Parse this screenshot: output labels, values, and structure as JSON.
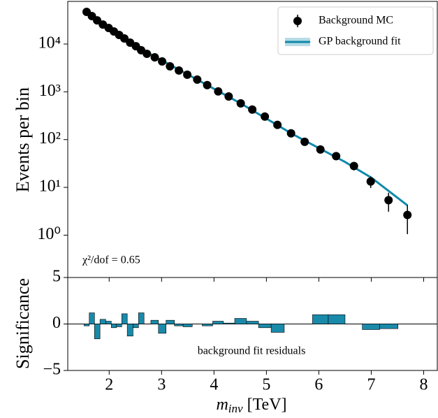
{
  "chart_data": [
    {
      "type": "scatter",
      "y_label": "Events per bin",
      "annotation": "χ²/dof = 0.65",
      "log_y": true,
      "legend": "upper right",
      "xlim": [
        1.21,
        8.26
      ],
      "xticks": [
        2,
        3,
        4,
        5,
        6,
        7,
        8
      ],
      "ylim": [
        0.13,
        78000
      ],
      "yticks": [
        {
          "value": 1,
          "label": "10⁰"
        },
        {
          "value": 10,
          "label": "10¹"
        },
        {
          "value": 100,
          "label": "10²"
        },
        {
          "value": 1000,
          "label": "10³"
        },
        {
          "value": 10000,
          "label": "10⁴"
        }
      ],
      "series": [
        {
          "name": "Background MC",
          "kind": "points",
          "color": "#000000",
          "x": [
            1.57,
            1.67,
            1.77,
            1.88,
            1.99,
            2.09,
            2.19,
            2.29,
            2.4,
            2.51,
            2.61,
            2.72,
            2.87,
            3.01,
            3.16,
            3.33,
            3.49,
            3.68,
            3.87,
            4.08,
            4.28,
            4.51,
            4.73,
            4.97,
            5.21,
            5.47,
            5.73,
            6.03,
            6.33,
            6.67,
            6.99,
            7.33,
            7.69
          ],
          "values": [
            47000,
            38400,
            31300,
            25600,
            21700,
            18300,
            15500,
            13100,
            10700,
            9000,
            7400,
            6250,
            5280,
            4320,
            3410,
            2790,
            2280,
            1800,
            1380,
            1020,
            800,
            574,
            425,
            303,
            203,
            135,
            90,
            62,
            45,
            28,
            13.3,
            5.4,
            2.65
          ],
          "errors": [
            217,
            196,
            177,
            160,
            147,
            135,
            124,
            114,
            103,
            95,
            86,
            79,
            73,
            66,
            58,
            53,
            48,
            42,
            37,
            32,
            28,
            24,
            21,
            17,
            14,
            11.6,
            9.5,
            7.9,
            6.7,
            5.3,
            3.6,
            2.3,
            1.6
          ]
        },
        {
          "name": "GP background fit",
          "kind": "line",
          "color": "#1089ab",
          "x": [
            1.57,
            2.5,
            3.5,
            4.5,
            5.5,
            6.5,
            7.0,
            7.69
          ],
          "values": [
            47000,
            9100,
            2300,
            580,
            130,
            34,
            16,
            4.2
          ]
        }
      ]
    },
    {
      "type": "bar",
      "y_label": "Significance",
      "annotation": "background fit residuals",
      "x_label": {
        "symbol": "m",
        "subscript": "inv",
        "unit": "[TeV]"
      },
      "color": "#1a8aaa",
      "xlim": [
        1.21,
        8.26
      ],
      "xticks": [
        2,
        3,
        4,
        5,
        6,
        7,
        8
      ],
      "ylim": [
        -5,
        5
      ],
      "yticks": [
        {
          "value": -5,
          "label": "−5"
        },
        0,
        5
      ],
      "x": [
        1.57,
        1.67,
        1.77,
        1.88,
        1.99,
        2.09,
        2.19,
        2.29,
        2.4,
        2.51,
        2.61,
        2.72,
        2.87,
        3.01,
        3.16,
        3.33,
        3.49,
        3.68,
        3.87,
        4.08,
        4.28,
        4.51,
        4.73,
        4.97,
        5.21,
        5.47,
        5.73,
        6.03,
        6.33,
        6.67,
        6.99,
        7.33,
        7.69
      ],
      "values": [
        -0.2,
        1.2,
        -1.6,
        0.5,
        0.3,
        -0.4,
        -0.3,
        1.1,
        -1.3,
        -0.4,
        1.2,
        0.0,
        0.4,
        -1.0,
        0.4,
        -0.2,
        -0.3,
        0.0,
        -0.2,
        0.3,
        0.1,
        0.6,
        0.3,
        -0.4,
        -0.9,
        0.0,
        0.0,
        1.0,
        1.0,
        0.0,
        -0.6,
        -0.5,
        0.0
      ]
    }
  ]
}
